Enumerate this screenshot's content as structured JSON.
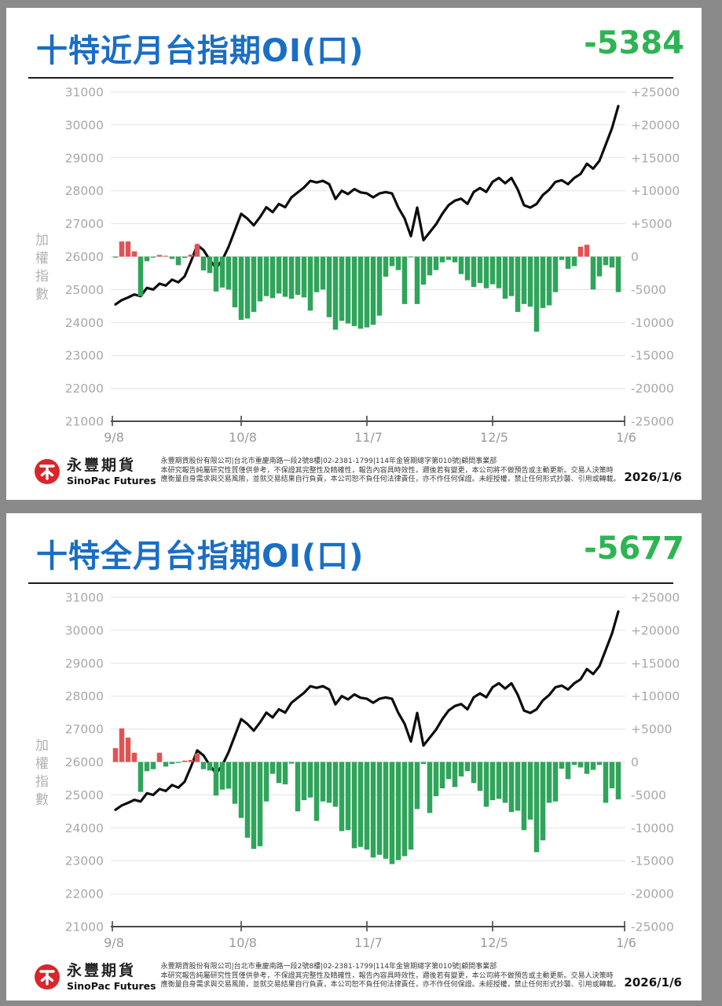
{
  "page": {
    "background_color": "#8a8a8a",
    "card_color": "#ffffff"
  },
  "footer": {
    "logo": {
      "name_zh": "永豐期貨",
      "name_en": "SinoPac Futures",
      "icon_color": "#d8262c"
    },
    "company_line": "永豐期貨股份有限公司|台北市重慶南路一段2號8樓|02-2381-1799|114年金管期總字第010號|顧問事業部",
    "disclaimer_line1": "本研究報告純屬研究性質僅供參考，不保證其完整性及精確性，報告內容具時效性，邇後若有變更，本公司將不做預告或主動更新。交易人決策時",
    "disclaimer_line2": "應衡量自身需求與交易風險，並就交易結果自行負責，本公司恕不負任何法律責任，亦不作任何保證。未經授權，禁止任何形式抄襲、引用或轉載。",
    "date": "2026/1/6"
  },
  "chart_data": [
    {
      "type": "bar",
      "subtype": "combo-line-bar",
      "title": "十特近月台指期OI(口)",
      "headline_value": "-5384",
      "title_color": "#1a6ec5",
      "headline_color": "#2db553",
      "left_axis": {
        "label": "加權指數",
        "min": 21000,
        "max": 31000,
        "ticks": [
          31000,
          30000,
          29000,
          28000,
          27000,
          26000,
          25000,
          24000,
          23000,
          22000,
          21000
        ]
      },
      "right_axis": {
        "min": -25000,
        "max": 25000,
        "tick_labels": [
          "+25000",
          "+20000",
          "+15000",
          "+10000",
          "+5000",
          "0",
          "-5000",
          "-10000",
          "-15000",
          "-20000",
          "-25000"
        ]
      },
      "x_axis": {
        "tick_labels": [
          "9/8",
          "10/8",
          "11/7",
          "12/5",
          "1/6"
        ],
        "tick_indices": [
          0,
          20,
          40,
          60,
          80
        ]
      },
      "legend": "off",
      "grid": "on",
      "series": [
        {
          "name": "加權指數",
          "type": "line",
          "axis": "left",
          "color": "#0d0d0d",
          "values": [
            24550,
            24680,
            24760,
            24850,
            24800,
            25050,
            25000,
            25180,
            25120,
            25300,
            25220,
            25400,
            25850,
            26350,
            26200,
            25900,
            25650,
            25900,
            26300,
            26800,
            27300,
            27150,
            26950,
            27200,
            27500,
            27350,
            27600,
            27500,
            27800,
            27950,
            28100,
            28300,
            28250,
            28300,
            28200,
            27750,
            28000,
            27900,
            28050,
            27950,
            27920,
            27800,
            27920,
            27960,
            27920,
            27490,
            27160,
            26620,
            27490,
            26500,
            26740,
            26980,
            27300,
            27560,
            27700,
            27760,
            27600,
            27965,
            28080,
            27965,
            28270,
            28390,
            28230,
            28390,
            28040,
            27560,
            27490,
            27600,
            27870,
            28030,
            28270,
            28320,
            28200,
            28390,
            28510,
            28820,
            28670,
            28910,
            29400,
            29900,
            30570
          ]
        },
        {
          "name": "OI",
          "type": "bar",
          "axis": "right",
          "color_positive": "#e05353",
          "color_negative": "#2fa45a",
          "values": [
            -150,
            2300,
            2300,
            800,
            -6000,
            -700,
            -150,
            250,
            100,
            -350,
            -1300,
            -200,
            300,
            1900,
            -2100,
            -2500,
            -5300,
            -4700,
            -5000,
            -7700,
            -9600,
            -9400,
            -8400,
            -6800,
            -6000,
            -6300,
            -5600,
            -6100,
            -6400,
            -5800,
            -6200,
            -8200,
            -5400,
            -5000,
            -9200,
            -11100,
            -9750,
            -10150,
            -10550,
            -10950,
            -10750,
            -10350,
            -8970,
            -3050,
            -1450,
            -2050,
            -7200,
            -100,
            -7200,
            -4250,
            -2850,
            -2050,
            -870,
            -500,
            -870,
            -2650,
            -3600,
            -4600,
            -4000,
            -4800,
            -4200,
            -4800,
            -6400,
            -6000,
            -8400,
            -7200,
            -7600,
            -11400,
            -7800,
            -7400,
            -5400,
            -500,
            -1850,
            -1450,
            1500,
            1800,
            -5000,
            -3000,
            -1300,
            -1650,
            -5384
          ]
        }
      ]
    },
    {
      "type": "bar",
      "subtype": "combo-line-bar",
      "title": "十特全月台指期OI(口)",
      "headline_value": "-5677",
      "title_color": "#1a6ec5",
      "headline_color": "#2db553",
      "left_axis": {
        "label": "加權指數",
        "min": 21000,
        "max": 31000,
        "ticks": [
          31000,
          30000,
          29000,
          28000,
          27000,
          26000,
          25000,
          24000,
          23000,
          22000,
          21000
        ]
      },
      "right_axis": {
        "min": -25000,
        "max": 25000,
        "tick_labels": [
          "+25000",
          "+20000",
          "+15000",
          "+10000",
          "+5000",
          "0",
          "-5000",
          "-10000",
          "-15000",
          "-20000",
          "-25000"
        ]
      },
      "x_axis": {
        "tick_labels": [
          "9/8",
          "10/8",
          "11/7",
          "12/5",
          "1/6"
        ],
        "tick_indices": [
          0,
          20,
          40,
          60,
          80
        ]
      },
      "legend": "off",
      "grid": "on",
      "series": [
        {
          "name": "加權指數",
          "type": "line",
          "axis": "left",
          "color": "#0d0d0d",
          "values": [
            24550,
            24680,
            24760,
            24850,
            24800,
            25050,
            25000,
            25180,
            25120,
            25300,
            25220,
            25400,
            25850,
            26350,
            26200,
            25900,
            25650,
            25900,
            26300,
            26800,
            27300,
            27150,
            26950,
            27200,
            27500,
            27350,
            27600,
            27500,
            27800,
            27950,
            28100,
            28300,
            28250,
            28300,
            28200,
            27750,
            28000,
            27900,
            28050,
            27950,
            27920,
            27800,
            27920,
            27960,
            27920,
            27490,
            27160,
            26620,
            27490,
            26500,
            26740,
            26980,
            27300,
            27560,
            27700,
            27760,
            27600,
            27965,
            28080,
            27965,
            28270,
            28390,
            28230,
            28390,
            28040,
            27560,
            27490,
            27600,
            27870,
            28030,
            28270,
            28320,
            28200,
            28390,
            28510,
            28820,
            28670,
            28910,
            29400,
            29900,
            30570
          ]
        },
        {
          "name": "OI",
          "type": "bar",
          "axis": "right",
          "color_positive": "#e05353",
          "color_negative": "#2fa45a",
          "values": [
            2100,
            5100,
            3700,
            1400,
            -4550,
            -1400,
            -1100,
            1400,
            -700,
            -300,
            -150,
            200,
            300,
            1300,
            -1100,
            -1300,
            -5100,
            -4200,
            -4050,
            -6350,
            -8500,
            -11500,
            -13200,
            -12800,
            -6000,
            -1800,
            -3200,
            -3400,
            -250,
            -7500,
            -5800,
            -5400,
            -8950,
            -6000,
            -6200,
            -6800,
            -10500,
            -10350,
            -13100,
            -12900,
            -13300,
            -14500,
            -14100,
            -14700,
            -15500,
            -14900,
            -14300,
            -13300,
            -7150,
            -300,
            -7750,
            -5200,
            -4000,
            -2600,
            -3800,
            -2200,
            -1400,
            -3200,
            -4400,
            -6800,
            -5800,
            -5600,
            -6200,
            -7600,
            -7400,
            -10350,
            -8750,
            -13700,
            -11900,
            -6200,
            -6000,
            -1030,
            -2600,
            -450,
            -830,
            -1800,
            -1200,
            -450,
            -6200,
            -4000,
            -5677
          ]
        }
      ]
    }
  ]
}
